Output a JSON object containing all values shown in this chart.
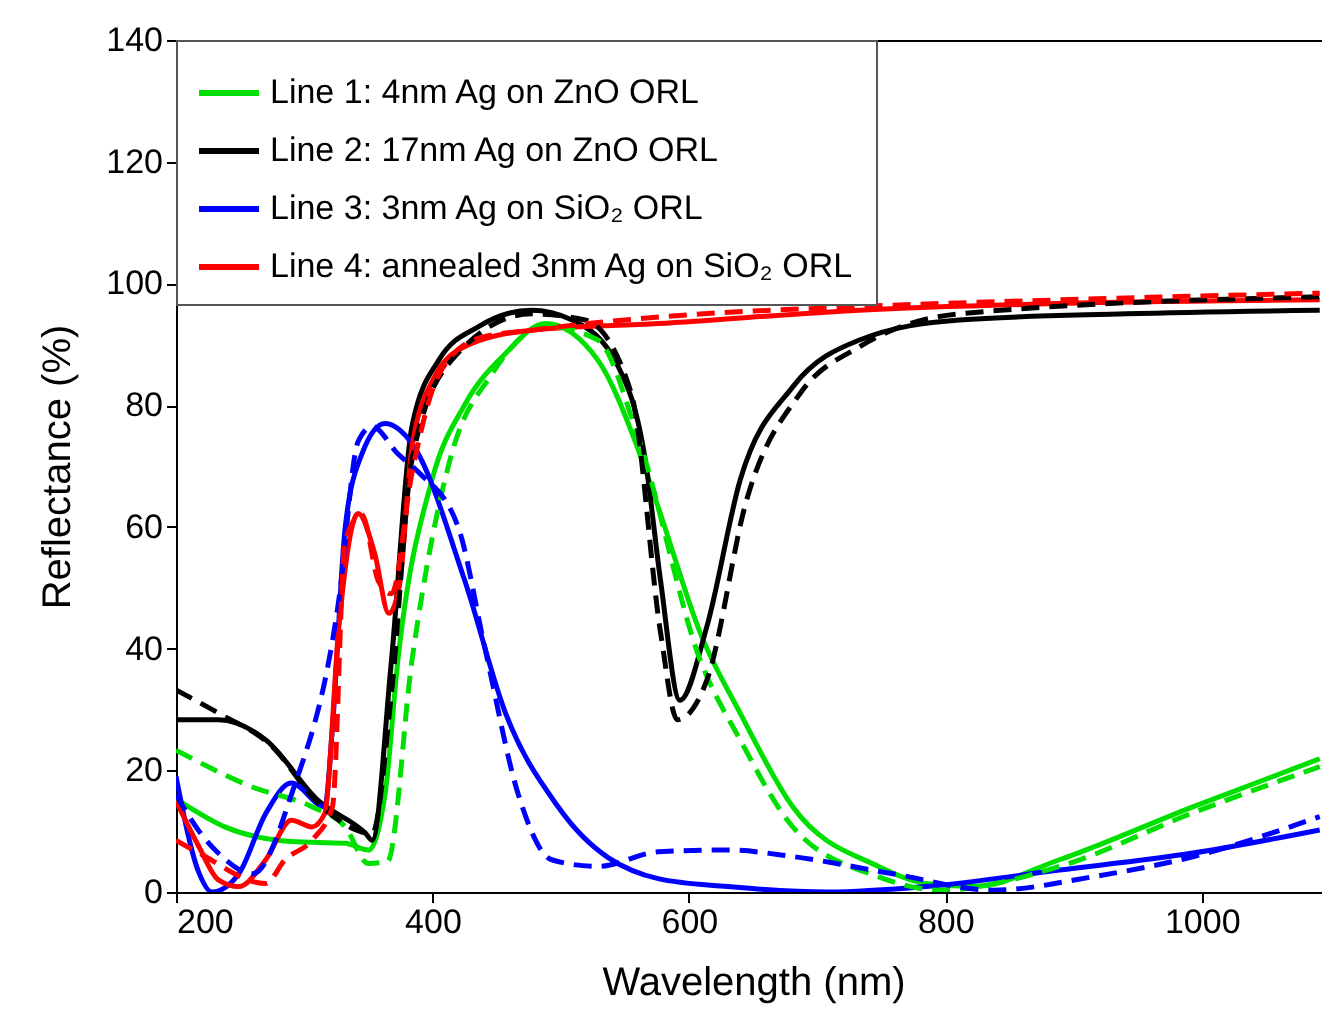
{
  "chart_data": {
    "type": "line",
    "xlabel": "Wavelength (nm)",
    "ylabel": "Reflectance (%)",
    "xlim": [
      200,
      1100
    ],
    "ylim": [
      0,
      140
    ],
    "xticks": [
      200,
      400,
      600,
      800,
      1000
    ],
    "yticks": [
      0,
      20,
      40,
      60,
      80,
      100,
      120,
      140
    ],
    "legend": "top left",
    "grid": false,
    "series": [
      {
        "name": "Line 1: 4nm Ag on ZnO ORL",
        "color": "#00e000",
        "line_style": "solid",
        "x": [
          200,
          238,
          290,
          332,
          350,
          363,
          373,
          400,
          425,
          457,
          488,
          529,
          560,
          578,
          609,
          640,
          681,
          748,
          785,
          822,
          889,
          993,
          1092
        ],
        "values": [
          15.3,
          10.7,
          8.3,
          8,
          6.9,
          16,
          38,
          68,
          80,
          88.5,
          93.4,
          87.4,
          73,
          62,
          42.5,
          29.4,
          14,
          4.2,
          1.4,
          0.9,
          5.3,
          14,
          21.9
        ]
      },
      {
        "name": "Line 2: 17nm Ag on ZnO ORL",
        "color": "#000000",
        "line_style": "solid",
        "x": [
          200,
          233,
          270,
          311,
          348,
          353,
          368,
          384,
          405,
          436,
          477,
          509,
          545,
          566,
          578,
          593,
          614,
          640,
          681,
          733,
          811,
          941,
          1092
        ],
        "values": [
          28.3,
          28.3,
          25,
          15,
          9.6,
          8.5,
          38,
          76.5,
          87.4,
          92.9,
          95.6,
          94,
          86.3,
          71,
          51,
          31.5,
          43.6,
          67.7,
          83,
          90.7,
          94,
          95,
          95.6
        ]
      },
      {
        "name": "Line 3: 3nm Ag on SiO₂ ORL",
        "color": "#0000ff",
        "line_style": "solid",
        "x": [
          200,
          218,
          228,
          249,
          270,
          290,
          316,
          322,
          332,
          345,
          363,
          384,
          425,
          457,
          498,
          576,
          630,
          708,
          785,
          889,
          993,
          1092
        ],
        "values": [
          19,
          3.1,
          0,
          3,
          12.9,
          17.9,
          14,
          27,
          60,
          72,
          77,
          73.7,
          51.3,
          29.4,
          14,
          2.2,
          0.9,
          0,
          0.9,
          3.6,
          6.4,
          10.2
        ]
      },
      {
        "name": "Line 4: annealed 3nm Ag on SiO₂ ORL",
        "color": "#ff0000",
        "line_style": "solid",
        "x": [
          200,
          218,
          233,
          249,
          270,
          290,
          306,
          316,
          327,
          342,
          355,
          366,
          374,
          384,
          400,
          425,
          477,
          576,
          733,
          889,
          1092
        ],
        "values": [
          15,
          7.4,
          2,
          0.9,
          5.3,
          11.8,
          10.7,
          12.9,
          43.6,
          62.2,
          55.6,
          45.8,
          50,
          73,
          84,
          89.6,
          92.3,
          93.4,
          95.6,
          96.7,
          97.3
        ]
      },
      {
        "color": "#00e000",
        "line_style": "dashed",
        "x": [
          200,
          259,
          306,
          332,
          350,
          365,
          384,
          415,
          446,
          488,
          529,
          560,
          609,
          640,
          681,
          748,
          796,
          889,
          993,
          1092
        ],
        "values": [
          23.3,
          17.3,
          14,
          10.7,
          4.7,
          5,
          38,
          72,
          85,
          93,
          90.7,
          75,
          38,
          25,
          10.7,
          2.5,
          0.3,
          4.2,
          13,
          20.6
        ]
      },
      {
        "color": "#000000",
        "line_style": "dashed",
        "x": [
          200,
          233,
          275,
          311,
          353,
          368,
          384,
          415,
          477,
          519,
          555,
          578,
          591,
          614,
          645,
          687,
          733,
          811,
          1092
        ],
        "values": [
          33.2,
          29.4,
          23.9,
          14.6,
          9.6,
          32.6,
          71,
          87.4,
          95,
          94,
          82,
          42.5,
          28.3,
          34.8,
          64.4,
          82,
          89.6,
          95,
          97.8
        ]
      },
      {
        "color": "#0000ff",
        "line_style": "dashed",
        "x": [
          200,
          218,
          235,
          260,
          290,
          327,
          342,
          353,
          373,
          389,
          420,
          441,
          467,
          493,
          529,
          576,
          630,
          682,
          759,
          837,
          915,
          993,
          1092
        ],
        "values": [
          16,
          10,
          6,
          3,
          16,
          48,
          74,
          76.5,
          72,
          69,
          60,
          40,
          16,
          5.3,
          4.2,
          6.6,
          6.9,
          5.8,
          3,
          0.3,
          2.5,
          5.8,
          12.4
        ]
      },
      {
        "color": "#ff0000",
        "line_style": "dashed",
        "x": [
          200,
          218,
          270,
          285,
          306,
          322,
          332,
          345,
          358,
          368,
          384,
          405,
          436,
          477,
          578,
          733,
          889,
          1092
        ],
        "values": [
          8.5,
          6.4,
          1.4,
          5.3,
          8.5,
          14,
          57.8,
          62,
          51,
          49,
          68.8,
          85,
          91,
          92.3,
          94.5,
          96.2,
          97.3,
          98.4
        ]
      }
    ]
  }
}
